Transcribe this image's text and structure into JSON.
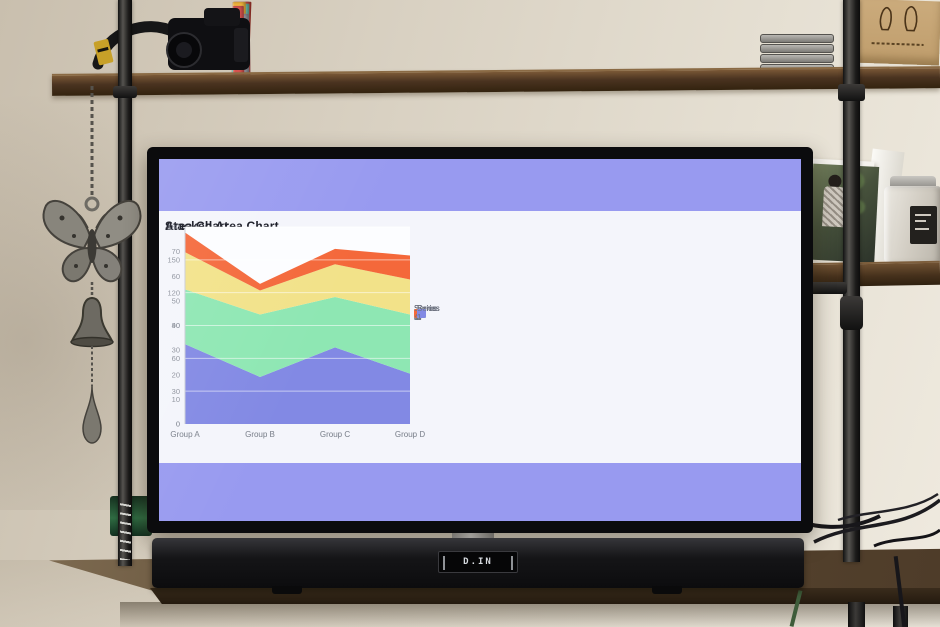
{
  "screen": {
    "background_color": "#989af0",
    "panel_color": "#f4f5fb"
  },
  "tv": {
    "soundbar_display": "D.IN"
  },
  "chart_data": [
    {
      "type": "area",
      "stacked": false,
      "title": "Area Chart",
      "categories": [
        "Group A",
        "Group B",
        "Group C",
        "Group D"
      ],
      "series": [
        {
          "name": "Series 1",
          "color": "#8289e4",
          "values": [
            73,
            43,
            70,
            46
          ]
        },
        {
          "name": "Series 2",
          "color": "#8ee7b3",
          "values": [
            50,
            57,
            46,
            54
          ]
        },
        {
          "name": "Series 3",
          "color": "#f2e289",
          "values": [
            34,
            22,
            30,
            32
          ]
        },
        {
          "name": "Series 4",
          "color": "#f4683a",
          "values": [
            18,
            6,
            14,
            22
          ]
        }
      ],
      "ylim": [
        0,
        80
      ],
      "yticks": [
        0,
        10,
        20,
        30,
        40,
        50,
        60,
        70,
        80
      ],
      "legend_order": [
        "Series 1",
        "Series 2",
        "Series 3",
        "Series 4"
      ],
      "legend_position": "right",
      "grid": true
    },
    {
      "type": "area",
      "stacked": true,
      "title": "Stacked Area Chart",
      "categories": [
        "Group A",
        "Group B",
        "Group C",
        "Group D"
      ],
      "series": [
        {
          "name": "Series 1",
          "color": "#8289e4",
          "values": [
            73,
            43,
            70,
            46
          ]
        },
        {
          "name": "Series 2",
          "color": "#8ee7b3",
          "values": [
            50,
            57,
            46,
            54
          ]
        },
        {
          "name": "Series 3",
          "color": "#f2e289",
          "values": [
            34,
            22,
            30,
            32
          ]
        },
        {
          "name": "Series 4",
          "color": "#f4683a",
          "values": [
            18,
            6,
            14,
            22
          ]
        }
      ],
      "ylim": [
        0,
        180
      ],
      "yticks": [
        0,
        30,
        60,
        90,
        120,
        150,
        180
      ],
      "legend_order": [
        "Series 4",
        "Series 3",
        "Series 2",
        "Series 1"
      ],
      "legend_position": "right",
      "grid": true
    }
  ],
  "scene": {
    "colors": {
      "wall": "#ddd5c6",
      "shelf_wood": "#4a3320",
      "table_wood": "#5b4832",
      "metal_pipe": "#1c1b1a",
      "ornament_metal": "#7b7870"
    },
    "dvd_spines": [
      "#7a4e8e",
      "#22222a",
      "#e8e4dc",
      "#c03a3a",
      "#ded9cf",
      "#2fb3a0",
      "#e777a8",
      "#efece5",
      "#c0392b",
      "#7ab0d6",
      "#2b5fa3",
      "#e3dfd6",
      "#e0bc3c",
      "#b3392f",
      "#2a4f8f",
      "#e79cb4",
      "#bfe3d8",
      "#f0ede6",
      "#1f4f9e",
      "#d8c955",
      "#efe9d8",
      "#d86f92",
      "#9a9aa0",
      "#e6e2da",
      "#88b5d8",
      "#caa04a",
      "#30323a",
      "#d5cfc5",
      "#3a66aa",
      "#c8473f",
      "#eae6de",
      "#67b8a8",
      "#e2758f",
      "#f0b43c",
      "#8f8f97",
      "#d9534f"
    ],
    "spine_labels": [
      {
        "index": 8,
        "text": "THE DISTANCE",
        "color": "#f5eeea"
      },
      {
        "index": 17,
        "text": "MAN",
        "color": "#c23b32"
      },
      {
        "index": 20,
        "text": "Vegas",
        "color": "#55503f"
      }
    ]
  }
}
